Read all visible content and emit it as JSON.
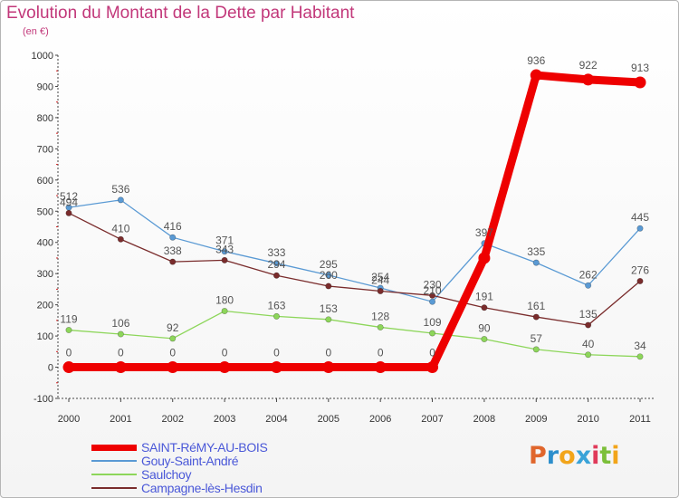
{
  "header": {
    "title": "Evolution du Montant de la Dette par Habitant",
    "subtitle": "(en €)"
  },
  "brand": {
    "letters": [
      "P",
      "r",
      "o",
      "x",
      "i",
      "t",
      "i"
    ],
    "colors": [
      "#e0662c",
      "#2d8fcc",
      "#f2a51a",
      "#3aa3d8",
      "#e03a5a",
      "#7cbf3a",
      "#f2a51a"
    ]
  },
  "chart_data": {
    "type": "line",
    "title": "Evolution du Montant de la Dette par Habitant",
    "subtitle": "(en €)",
    "x": [
      "2000",
      "2001",
      "2002",
      "2003",
      "2004",
      "2005",
      "2006",
      "2007",
      "2008",
      "2009",
      "2010",
      "2011"
    ],
    "ylim": [
      -100,
      1000
    ],
    "yticks": [
      "-100",
      "0",
      "100",
      "200",
      "300",
      "400",
      "500",
      "600",
      "700",
      "800",
      "900",
      "1000"
    ],
    "grid": false,
    "legend_position": "bottom-left",
    "series": [
      {
        "name": "SAINT-RéMY-AU-BOIS",
        "color": "#ee0000",
        "thick": true,
        "values": [
          0,
          0,
          0,
          0,
          0,
          0,
          0,
          0,
          350,
          936,
          922,
          913
        ],
        "labels": [
          "0",
          "0",
          "0",
          "0",
          "0",
          "0",
          "0",
          "0",
          "",
          "936",
          "922",
          "913"
        ]
      },
      {
        "name": "Gouy-Saint-André",
        "color": "#5a9ad4",
        "thick": false,
        "values": [
          512,
          536,
          416,
          371,
          333,
          295,
          254,
          210,
          397,
          335,
          262,
          445
        ],
        "labels": [
          "512",
          "536",
          "416",
          "371",
          "333",
          "295",
          "254",
          "210",
          "397",
          "335",
          "262",
          "445"
        ]
      },
      {
        "name": "Saulchoy",
        "color": "#8dd65a",
        "thick": false,
        "values": [
          119,
          106,
          92,
          180,
          163,
          153,
          128,
          109,
          90,
          57,
          40,
          34
        ],
        "labels": [
          "119",
          "106",
          "92",
          "180",
          "163",
          "153",
          "128",
          "109",
          "90",
          "57",
          "40",
          "34"
        ]
      },
      {
        "name": "Campagne-lès-Hesdin",
        "color": "#7a2c2c",
        "thick": false,
        "values": [
          494,
          410,
          338,
          343,
          294,
          260,
          244,
          230,
          191,
          161,
          135,
          276
        ],
        "labels": [
          "494",
          "410",
          "338",
          "343",
          "294",
          "260",
          "244",
          "230",
          "191",
          "161",
          "135",
          "276"
        ]
      }
    ]
  }
}
